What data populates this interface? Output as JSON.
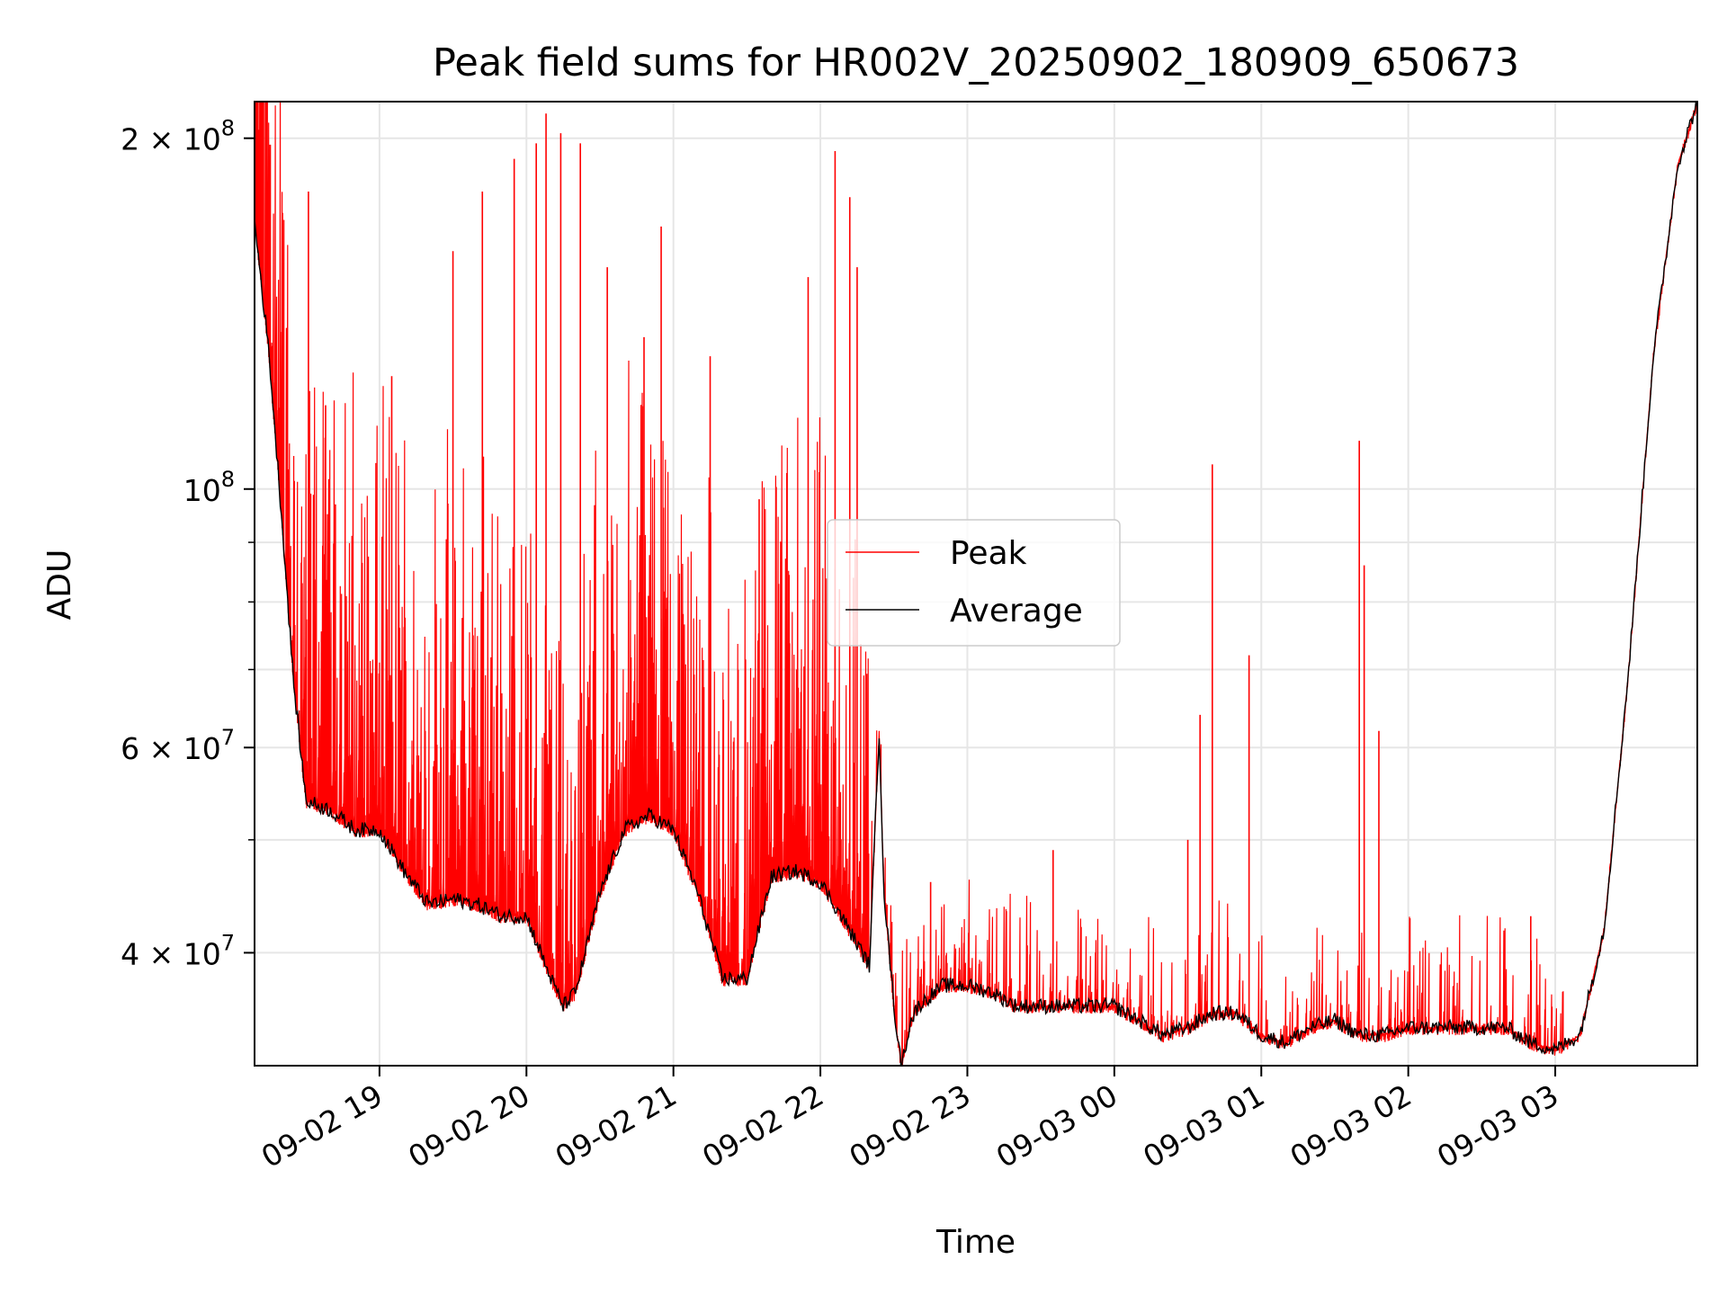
{
  "chart_data": {
    "type": "line",
    "title": "Peak field sums for HR002V_20250902_180909_650673",
    "xlabel": "Time",
    "ylabel": "ADU",
    "yscale": "log",
    "ylim": [
      32000000,
      215000000
    ],
    "xlim": [
      "09-02 18:09",
      "09-03 03:58"
    ],
    "grid": true,
    "legend_position": "center",
    "x_ticks": [
      {
        "value": "09-02 19:00",
        "label": "09-02 19"
      },
      {
        "value": "09-02 20:00",
        "label": "09-02 20"
      },
      {
        "value": "09-02 21:00",
        "label": "09-02 21"
      },
      {
        "value": "09-02 22:00",
        "label": "09-02 22"
      },
      {
        "value": "09-02 23:00",
        "label": "09-02 23"
      },
      {
        "value": "09-03 00:00",
        "label": "09-03 00"
      },
      {
        "value": "09-03 01:00",
        "label": "09-03 01"
      },
      {
        "value": "09-03 02:00",
        "label": "09-03 02"
      },
      {
        "value": "09-03 03:00",
        "label": "09-03 03"
      }
    ],
    "y_ticks": [
      {
        "value": 40000000,
        "mantissa": "4",
        "exponent": "7"
      },
      {
        "value": 60000000,
        "mantissa": "6",
        "exponent": "7"
      },
      {
        "value": 100000000,
        "mantissa": "",
        "exponent": "8"
      },
      {
        "value": 200000000,
        "mantissa": "2",
        "exponent": "8"
      }
    ],
    "series": [
      {
        "name": "Average",
        "color": "#000000",
        "x": [
          "09-02 18:09",
          "09-02 18:15",
          "09-02 18:20",
          "09-02 18:25",
          "09-02 18:30",
          "09-02 18:40",
          "09-02 18:50",
          "09-02 19:00",
          "09-02 19:10",
          "09-02 19:20",
          "09-02 19:30",
          "09-02 19:40",
          "09-02 19:50",
          "09-02 20:00",
          "09-02 20:10",
          "09-02 20:15",
          "09-02 20:20",
          "09-02 20:30",
          "09-02 20:40",
          "09-02 20:50",
          "09-02 21:00",
          "09-02 21:10",
          "09-02 21:20",
          "09-02 21:30",
          "09-02 21:40",
          "09-02 21:50",
          "09-02 22:00",
          "09-02 22:10",
          "09-02 22:20",
          "09-02 22:24",
          "09-02 22:26",
          "09-02 22:30",
          "09-02 22:33",
          "09-02 22:37",
          "09-02 22:40",
          "09-02 22:50",
          "09-02 23:00",
          "09-02 23:10",
          "09-02 23:20",
          "09-02 23:30",
          "09-02 23:40",
          "09-02 23:50",
          "09-03 00:00",
          "09-03 00:10",
          "09-03 00:20",
          "09-03 00:30",
          "09-03 00:40",
          "09-03 00:50",
          "09-03 01:00",
          "09-03 01:10",
          "09-03 01:20",
          "09-03 01:30",
          "09-03 01:40",
          "09-03 01:50",
          "09-03 02:00",
          "09-03 02:10",
          "09-03 02:20",
          "09-03 02:30",
          "09-03 02:40",
          "09-03 02:50",
          "09-03 03:00",
          "09-03 03:10",
          "09-03 03:20",
          "09-03 03:30",
          "09-03 03:40",
          "09-03 03:50",
          "09-03 03:58"
        ],
        "y": [
          170000000,
          130000000,
          95000000,
          68000000,
          54000000,
          53000000,
          51000000,
          51000000,
          47000000,
          44000000,
          44500000,
          44000000,
          43000000,
          43000000,
          38000000,
          36000000,
          37000000,
          45000000,
          51000000,
          52500000,
          51000000,
          45000000,
          38000000,
          38000000,
          46500000,
          47000000,
          46000000,
          42500000,
          39000000,
          62000000,
          45000000,
          36000000,
          32000000,
          35000000,
          36000000,
          37500000,
          37500000,
          37000000,
          36000000,
          36000000,
          36000000,
          36000000,
          36000000,
          35000000,
          34000000,
          34500000,
          35500000,
          35500000,
          34000000,
          33500000,
          34500000,
          35000000,
          34000000,
          34000000,
          34500000,
          34500000,
          34500000,
          34500000,
          34500000,
          33500000,
          33000000,
          34000000,
          42000000,
          70000000,
          130000000,
          190000000,
          215000000
        ]
      },
      {
        "name": "Peak",
        "color": "#ff0000",
        "spikes": [
          {
            "x": "09-02 18:31",
            "y": 180000000
          },
          {
            "x": "09-02 18:38",
            "y": 118000000
          },
          {
            "x": "09-02 18:42",
            "y": 97000000
          },
          {
            "x": "09-02 19:05",
            "y": 125000000
          },
          {
            "x": "09-02 19:30",
            "y": 160000000
          },
          {
            "x": "09-02 19:42",
            "y": 180000000
          },
          {
            "x": "09-02 19:55",
            "y": 192000000
          },
          {
            "x": "09-02 20:04",
            "y": 198000000
          },
          {
            "x": "09-02 20:08",
            "y": 210000000
          },
          {
            "x": "09-02 20:14",
            "y": 202000000
          },
          {
            "x": "09-02 20:22",
            "y": 198000000
          },
          {
            "x": "09-02 20:33",
            "y": 155000000
          },
          {
            "x": "09-02 20:48",
            "y": 135000000
          },
          {
            "x": "09-02 20:55",
            "y": 168000000
          },
          {
            "x": "09-02 21:15",
            "y": 130000000
          },
          {
            "x": "09-02 21:35",
            "y": 98000000
          },
          {
            "x": "09-02 21:55",
            "y": 152000000
          },
          {
            "x": "09-02 22:06",
            "y": 195000000
          },
          {
            "x": "09-02 22:12",
            "y": 178000000
          },
          {
            "x": "09-02 22:15",
            "y": 155000000
          },
          {
            "x": "09-02 22:45",
            "y": 46000000
          },
          {
            "x": "09-02 23:35",
            "y": 49000000
          },
          {
            "x": "09-03 00:30",
            "y": 50000000
          },
          {
            "x": "09-03 00:35",
            "y": 64000000
          },
          {
            "x": "09-03 00:40",
            "y": 105000000
          },
          {
            "x": "09-03 00:55",
            "y": 72000000
          },
          {
            "x": "09-03 01:40",
            "y": 110000000
          },
          {
            "x": "09-03 01:42",
            "y": 86000000
          },
          {
            "x": "09-03 01:48",
            "y": 62000000
          },
          {
            "x": "09-03 02:50",
            "y": 43000000
          }
        ]
      }
    ]
  },
  "legend": {
    "items": [
      {
        "label": "Peak",
        "color": "#ff0000"
      },
      {
        "label": "Average",
        "color": "#000000"
      }
    ]
  }
}
